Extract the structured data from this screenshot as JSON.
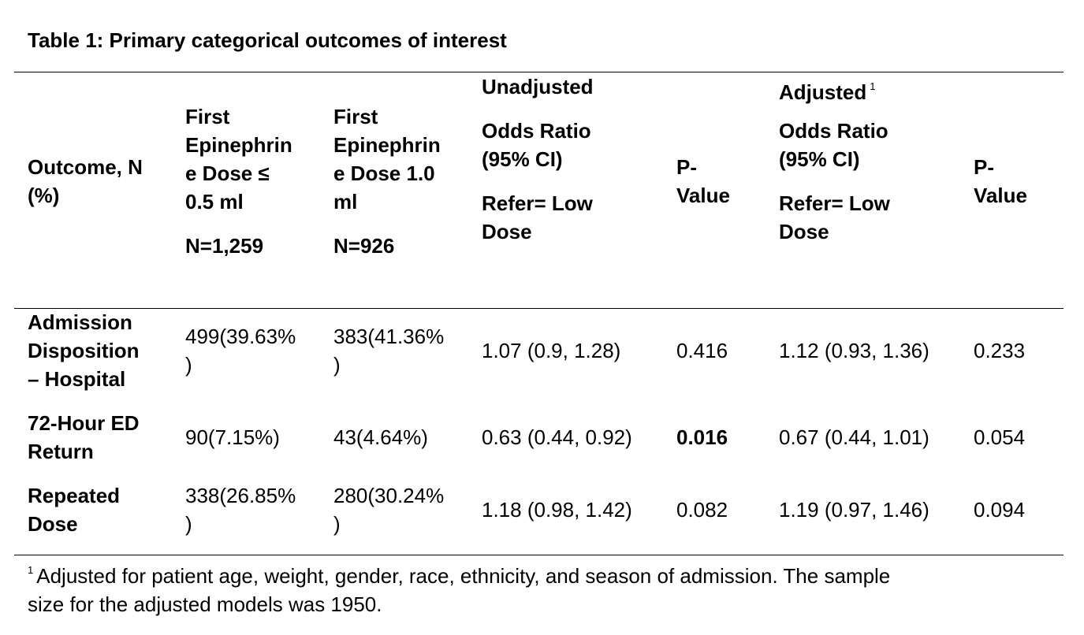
{
  "table": {
    "caption": "Table 1: Primary categorical outcomes of interest",
    "headers": {
      "outcome": [
        "Outcome, N",
        "(%)"
      ],
      "low_dose": [
        "First",
        "Epinephrin",
        "e Dose ≤",
        "0.5 ml"
      ],
      "low_dose_n": "N=1,259",
      "high_dose": [
        "First",
        "Epinephrin",
        "e Dose 1.0",
        "ml"
      ],
      "high_dose_n": "N=926",
      "unadjusted_title": "Unadjusted",
      "unadjusted_or": [
        "Odds Ratio",
        "(95% CI)"
      ],
      "unadjusted_ref": [
        "Refer= Low",
        "Dose"
      ],
      "unadjusted_p": [
        "P-",
        "Value"
      ],
      "adjusted_title": "Adjusted",
      "adjusted_sup": "1",
      "adjusted_or": [
        "Odds Ratio",
        "(95% CI)"
      ],
      "adjusted_ref": [
        "Refer= Low",
        "Dose"
      ],
      "adjusted_p": [
        "P-",
        "Value"
      ]
    },
    "rows": [
      {
        "outcome": [
          "Admission",
          "Disposition",
          "– Hospital"
        ],
        "low": [
          "499(39.63%",
          ")"
        ],
        "high": [
          "383(41.36%",
          ")"
        ],
        "unadj_or": "1.07 (0.9, 1.28)",
        "unadj_p": "0.416",
        "adj_or": "1.12 (0.93, 1.36)",
        "adj_p": "0.233"
      },
      {
        "outcome": [
          "72-Hour ED",
          "Return"
        ],
        "low": [
          "90(7.15%)"
        ],
        "high": [
          "43(4.64%)"
        ],
        "unadj_or": "0.63 (0.44, 0.92)",
        "unadj_p": "0.016",
        "adj_or": "0.67 (0.44, 1.01)",
        "adj_p": "0.054"
      },
      {
        "outcome": [
          "Repeated",
          "Dose"
        ],
        "low": [
          "338(26.85%",
          ")"
        ],
        "high": [
          "280(30.24%",
          ")"
        ],
        "unadj_or": "1.18 (0.98, 1.42)",
        "unadj_p": "0.082",
        "adj_or": "1.19 (0.97, 1.46)",
        "adj_p": "0.094"
      }
    ],
    "footnote": {
      "marker": "1",
      "lines": [
        "Adjusted for patient age, weight, gender, race, ethnicity, and season of admission. The sample",
        "size for the adjusted models was 1950."
      ]
    }
  }
}
